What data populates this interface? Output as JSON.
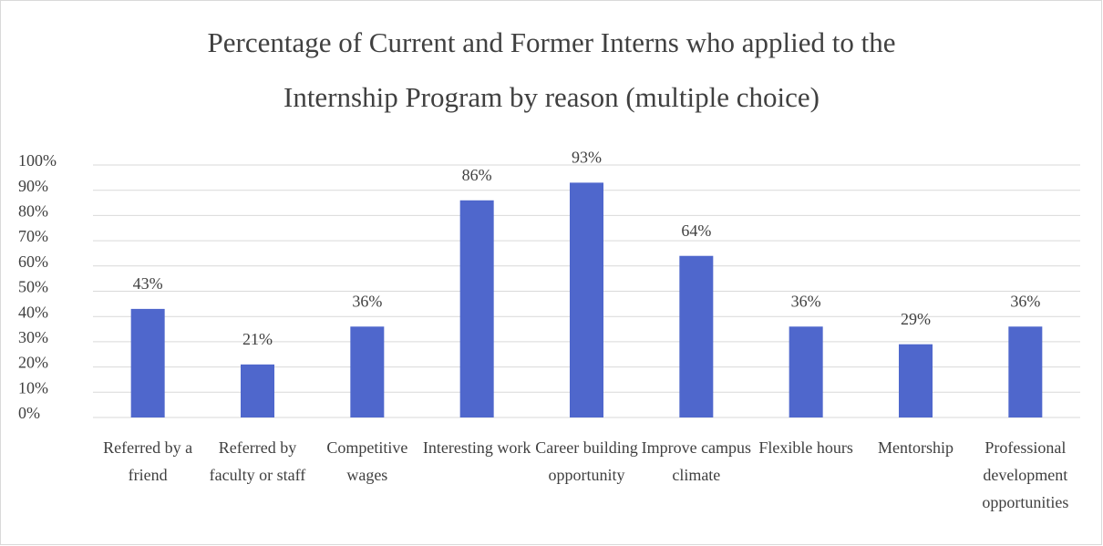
{
  "chart_data": {
    "type": "bar",
    "title": [
      "Percentage of Current and Former Interns who applied to the",
      "Internship Program by reason (multiple choice)"
    ],
    "categories": [
      "Referred by a friend",
      "Referred by faculty or staff",
      "Competitive wages",
      "Interesting work",
      "Career building opportunity",
      "Improve campus climate",
      "Flexible hours",
      "Mentorship",
      "Professional development opportunities"
    ],
    "values": [
      43,
      21,
      36,
      86,
      93,
      64,
      36,
      29,
      36
    ],
    "value_labels": [
      "43%",
      "21%",
      "36%",
      "86%",
      "93%",
      "64%",
      "36%",
      "29%",
      "36%"
    ],
    "color": "#4f67cc",
    "ylim": [
      0,
      100
    ],
    "yticks": [
      {
        "value": 0,
        "label": "0%"
      },
      {
        "value": 10,
        "label": "10%"
      },
      {
        "value": 20,
        "label": "20%"
      },
      {
        "value": 30,
        "label": "30%"
      },
      {
        "value": 40,
        "label": "40%"
      },
      {
        "value": 50,
        "label": "50%"
      },
      {
        "value": 60,
        "label": "60%"
      },
      {
        "value": 70,
        "label": "70%"
      },
      {
        "value": 80,
        "label": "80%"
      },
      {
        "value": 90,
        "label": "90%"
      },
      {
        "value": 100,
        "label": "100%"
      }
    ],
    "grid": true
  }
}
